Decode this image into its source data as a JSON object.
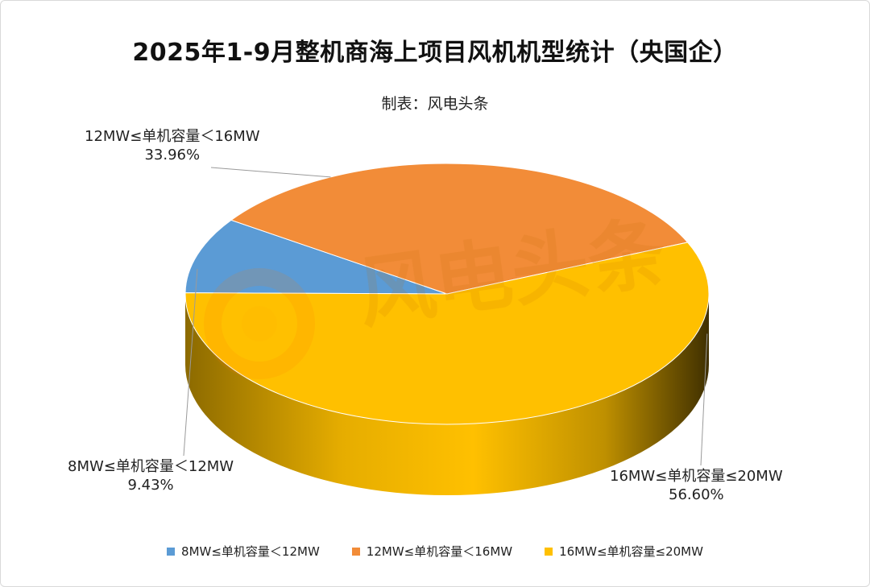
{
  "title": "2025年1-9月整机商海上项目风机机型统计（央国企）",
  "subtitle": "制表：风电头条",
  "watermark": "风电头条",
  "chart_data": {
    "type": "pie",
    "style": "3d",
    "title": "2025年1-9月整机商海上项目风机机型统计（央国企）",
    "subtitle": "制表：风电头条",
    "legend_position": "bottom",
    "series": [
      {
        "name": "8MW≤单机容量＜12MW",
        "value": 9.43,
        "label": "9.43%",
        "color": "#5B9BD5"
      },
      {
        "name": "12MW≤单机容量＜16MW",
        "value": 33.96,
        "label": "33.96%",
        "color": "#F28C38"
      },
      {
        "name": "16MW≤单机容量≤20MW",
        "value": 56.6,
        "label": "56.60%",
        "color": "#FFC000"
      }
    ]
  }
}
